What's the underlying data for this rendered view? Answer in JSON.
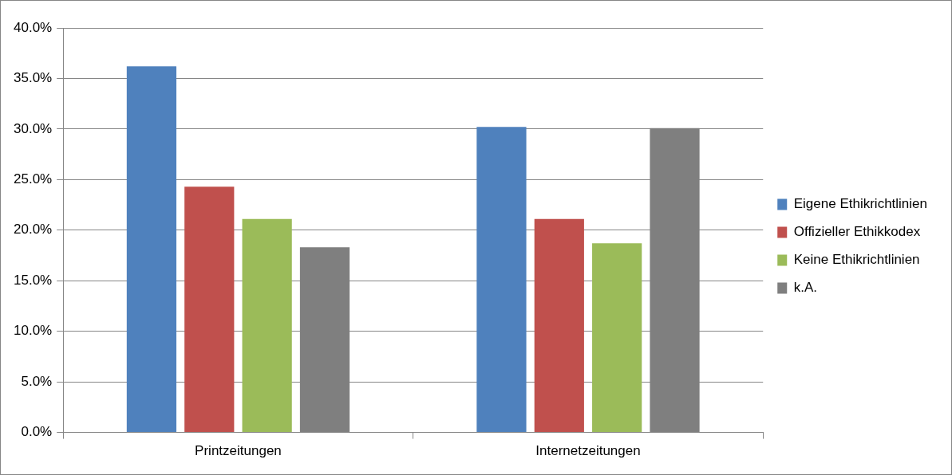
{
  "chart_data": {
    "type": "bar",
    "categories": [
      "Printzeitungen",
      "Internetzeitungen"
    ],
    "series": [
      {
        "name": "Eigene Ethikrichtlinien",
        "color": "#4f81bd",
        "values": [
          36.2,
          30.2
        ]
      },
      {
        "name": "Offizieller Ethikkodex",
        "color": "#c0504d",
        "values": [
          24.3,
          21.1
        ]
      },
      {
        "name": "Keine Ethikrichtlinien",
        "color": "#9bbb59",
        "values": [
          21.1,
          18.7
        ]
      },
      {
        "name": "k.A.",
        "color": "#7f7f7f",
        "values": [
          18.3,
          30.1
        ]
      }
    ],
    "ylim": [
      0,
      40
    ],
    "yticks": [
      {
        "value": 0,
        "label": "0.0%"
      },
      {
        "value": 5,
        "label": "5.0%"
      },
      {
        "value": 10,
        "label": "10.0%"
      },
      {
        "value": 15,
        "label": "15.0%"
      },
      {
        "value": 20,
        "label": "20.0%"
      },
      {
        "value": 25,
        "label": "25.0%"
      },
      {
        "value": 30,
        "label": "30.0%"
      },
      {
        "value": 35,
        "label": "35.0%"
      },
      {
        "value": 40,
        "label": "40.0%"
      }
    ],
    "grid": "y",
    "legend": "right"
  }
}
